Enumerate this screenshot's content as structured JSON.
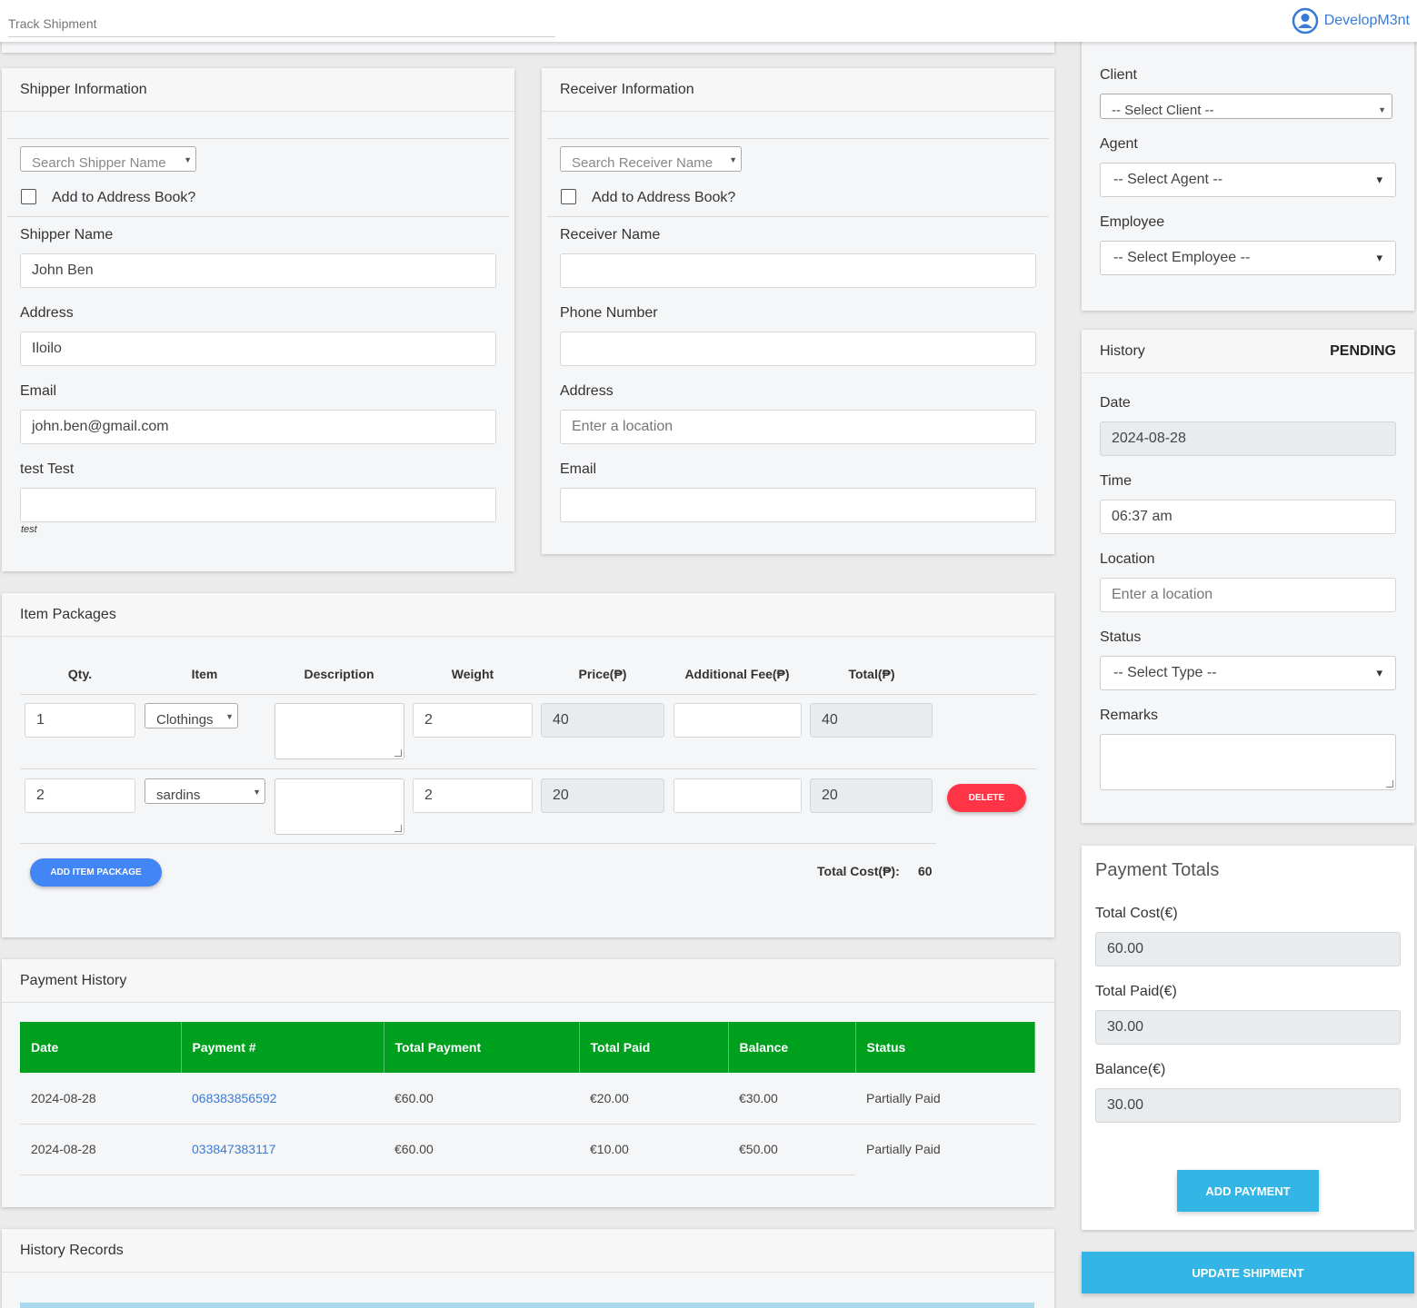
{
  "topbar": {
    "track_placeholder": "Track Shipment",
    "user_name": "DevelopM3nt"
  },
  "shipper": {
    "title": "Shipper Information",
    "search_placeholder": "Search Shipper Name",
    "address_book_label": "Add to Address Book?",
    "name_label": "Shipper Name",
    "name_value": "John Ben",
    "address_label": "Address",
    "address_value": "Iloilo",
    "email_label": "Email",
    "email_value": "john.ben@gmail.com",
    "custom_label": "test Test",
    "custom_value": "",
    "custom_hint": "test"
  },
  "receiver": {
    "title": "Receiver Information",
    "search_placeholder": "Search Receiver Name",
    "address_book_label": "Add to Address Book?",
    "name_label": "Receiver Name",
    "name_value": "",
    "phone_label": "Phone Number",
    "phone_value": "",
    "address_label": "Address",
    "address_placeholder": "Enter a location",
    "email_label": "Email",
    "email_value": ""
  },
  "assign": {
    "client_label": "Client",
    "client_value": "-- Select Client --",
    "agent_label": "Agent",
    "agent_value": "-- Select Agent --",
    "employee_label": "Employee",
    "employee_value": "-- Select Employee --"
  },
  "history": {
    "title": "History",
    "status_badge": "PENDING",
    "date_label": "Date",
    "date_value": "2024-08-28",
    "time_label": "Time",
    "time_value": "06:37 am",
    "location_label": "Location",
    "location_placeholder": "Enter a location",
    "status_label": "Status",
    "status_value": "-- Select Type --",
    "remarks_label": "Remarks"
  },
  "items": {
    "title": "Item Packages",
    "headers": [
      "Qty.",
      "Item",
      "Description",
      "Weight",
      "Price(₱)",
      "Additional Fee(₱)",
      "Total(₱)"
    ],
    "rows": [
      {
        "qty": "1",
        "item": "Clothings",
        "weight": "2",
        "price": "40",
        "fee": "",
        "total": "40"
      },
      {
        "qty": "2",
        "item": "sardins",
        "weight": "2",
        "price": "20",
        "fee": "",
        "total": "20"
      }
    ],
    "delete_label": "DELETE",
    "add_label": "ADD ITEM PACKAGE",
    "total_cost_label": "Total Cost(₱):",
    "total_cost_value": "60"
  },
  "payment_history": {
    "title": "Payment History",
    "headers": [
      "Date",
      "Payment #",
      "Total Payment",
      "Total Paid",
      "Balance",
      "Status"
    ],
    "rows": [
      {
        "date": "2024-08-28",
        "payment_no": "068383856592",
        "total_payment": "€60.00",
        "total_paid": "€20.00",
        "balance": "€30.00",
        "status": "Partially Paid"
      },
      {
        "date": "2024-08-28",
        "payment_no": "033847383117",
        "total_payment": "€60.00",
        "total_paid": "€10.00",
        "balance": "€50.00",
        "status": "Partially Paid"
      }
    ]
  },
  "payment_totals": {
    "title": "Payment Totals",
    "total_cost_label": "Total Cost(€)",
    "total_cost_value": "60.00",
    "total_paid_label": "Total Paid(€)",
    "total_paid_value": "30.00",
    "balance_label": "Balance(€)",
    "balance_value": "30.00",
    "add_payment_label": "ADD PAYMENT"
  },
  "history_records": {
    "title": "History Records"
  },
  "update_label": "UPDATE SHIPMENT",
  "colors": {
    "accent": "#33b5e5",
    "table_header": "#00a01f",
    "delete": "#ff3547",
    "add_item": "#4285f4",
    "link": "#3a7bd5"
  }
}
